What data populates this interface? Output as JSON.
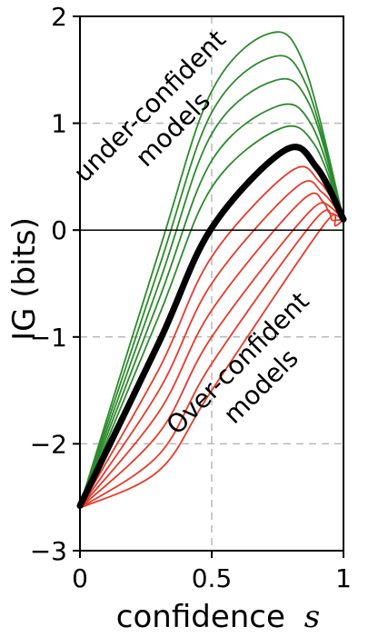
{
  "chart_data": {
    "type": "line",
    "xlabel": "confidence",
    "xlabel_variable": "s",
    "ylabel": "IG (bits)",
    "xlim": [
      0,
      1
    ],
    "ylim": [
      -3,
      2
    ],
    "xticks": [
      0,
      0.5,
      1
    ],
    "xtick_labels": [
      "0",
      "0.5",
      "1"
    ],
    "yticks": [
      -3,
      -2,
      -1,
      0,
      1,
      2
    ],
    "ytick_labels": [
      "−3",
      "−2",
      "−1",
      "0",
      "1",
      "2"
    ],
    "grid": "dashed",
    "reference_lines": {
      "y": 0,
      "x_dashed": 0.5
    },
    "colors": {
      "under_confident": "#2e8b2e",
      "calibrated": "#000000",
      "over_confident": "#e8392b",
      "grid": "#b8b8b8"
    },
    "annotations": [
      {
        "id": "under",
        "lines": [
          "under-confident",
          "models"
        ]
      },
      {
        "id": "over",
        "lines": [
          "Over-confident",
          "models"
        ]
      }
    ],
    "series": [
      {
        "group": "under",
        "points": [
          [
            0,
            -2.58
          ],
          [
            0.3,
            -0.2
          ],
          [
            0.5,
            1.3
          ],
          [
            0.72,
            1.84
          ],
          [
            0.85,
            1.55
          ],
          [
            1,
            0.1
          ]
        ]
      },
      {
        "group": "under",
        "points": [
          [
            0,
            -2.58
          ],
          [
            0.3,
            -0.35
          ],
          [
            0.5,
            1.1
          ],
          [
            0.73,
            1.62
          ],
          [
            0.86,
            1.35
          ],
          [
            1,
            0.1
          ]
        ]
      },
      {
        "group": "under",
        "points": [
          [
            0,
            -2.58
          ],
          [
            0.3,
            -0.5
          ],
          [
            0.5,
            0.9
          ],
          [
            0.74,
            1.4
          ],
          [
            0.87,
            1.18
          ],
          [
            1,
            0.1
          ]
        ]
      },
      {
        "group": "under",
        "points": [
          [
            0,
            -2.58
          ],
          [
            0.3,
            -0.65
          ],
          [
            0.5,
            0.65
          ],
          [
            0.75,
            1.16
          ],
          [
            0.88,
            0.98
          ],
          [
            1,
            0.1
          ]
        ]
      },
      {
        "group": "under",
        "points": [
          [
            0,
            -2.58
          ],
          [
            0.3,
            -0.8
          ],
          [
            0.5,
            0.4
          ],
          [
            0.76,
            0.95
          ],
          [
            0.89,
            0.8
          ],
          [
            1,
            0.1
          ]
        ]
      },
      {
        "group": "calibrated",
        "points": [
          [
            0,
            -2.58
          ],
          [
            0.3,
            -1.05
          ],
          [
            0.5,
            0.02
          ],
          [
            0.78,
            0.75
          ],
          [
            0.9,
            0.58
          ],
          [
            1,
            0.1
          ]
        ]
      },
      {
        "group": "over",
        "points": [
          [
            0,
            -2.6
          ],
          [
            0.3,
            -1.3
          ],
          [
            0.5,
            -0.25
          ],
          [
            0.8,
            0.55
          ],
          [
            0.91,
            0.45
          ],
          [
            1,
            0.1
          ]
        ]
      },
      {
        "group": "over",
        "points": [
          [
            0,
            -2.6
          ],
          [
            0.3,
            -1.5
          ],
          [
            0.5,
            -0.5
          ],
          [
            0.82,
            0.4
          ],
          [
            0.92,
            0.35
          ],
          [
            1,
            0.1
          ]
        ]
      },
      {
        "group": "over",
        "points": [
          [
            0,
            -2.6
          ],
          [
            0.3,
            -1.7
          ],
          [
            0.5,
            -0.75
          ],
          [
            0.84,
            0.27
          ],
          [
            0.93,
            0.25
          ],
          [
            1,
            0.1
          ]
        ]
      },
      {
        "group": "over",
        "points": [
          [
            0,
            -2.6
          ],
          [
            0.3,
            -1.9
          ],
          [
            0.5,
            -1.0
          ],
          [
            0.87,
            0.17
          ],
          [
            0.95,
            0.16
          ],
          [
            1,
            0.1
          ]
        ]
      },
      {
        "group": "over",
        "points": [
          [
            0,
            -2.6
          ],
          [
            0.3,
            -2.1
          ],
          [
            0.5,
            -1.25
          ],
          [
            0.89,
            0.09
          ],
          [
            0.96,
            0.09
          ],
          [
            1,
            0.1
          ]
        ]
      },
      {
        "group": "over",
        "points": [
          [
            0,
            -2.6
          ],
          [
            0.3,
            -2.25
          ],
          [
            0.5,
            -1.5
          ],
          [
            0.92,
            0.03
          ],
          [
            0.97,
            0.04
          ],
          [
            1,
            0.1
          ]
        ]
      }
    ]
  }
}
